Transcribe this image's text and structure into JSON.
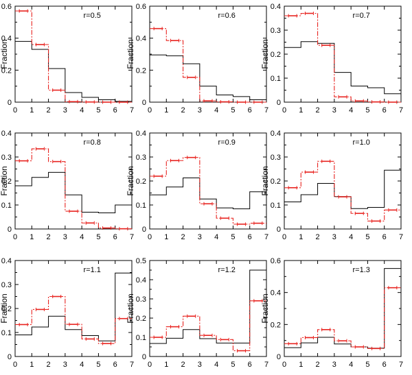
{
  "colors": {
    "black_series": "#000000",
    "red_series": "#e8231f",
    "frame": "#000000"
  },
  "chart_data": [
    {
      "type": "step-histogram",
      "title": "r=0.5",
      "ylabel": "Fraction",
      "xlim": [
        0,
        7
      ],
      "ylim": [
        0,
        0.6
      ],
      "xticks": [
        "0",
        "1",
        "2",
        "3",
        "4",
        "5",
        "6",
        "7"
      ],
      "yticks": [
        {
          "value": 0,
          "label": "0"
        },
        {
          "value": 0.2,
          "label": "0.2"
        },
        {
          "value": 0.4,
          "label": "0.4"
        },
        {
          "value": 0.6,
          "label": "0.6"
        }
      ],
      "series": [
        {
          "name": "black",
          "style": "solid",
          "values": [
            0.38,
            0.33,
            0.21,
            0.06,
            0.03,
            0.015,
            0.005
          ]
        },
        {
          "name": "red",
          "style": "dash-dot",
          "error_bars": true,
          "values": [
            0.57,
            0.36,
            0.075,
            0.003,
            0.001,
            0.0,
            0.0
          ]
        }
      ]
    },
    {
      "type": "step-histogram",
      "title": "r=0.6",
      "ylabel": "Fraction",
      "xlim": [
        0,
        7
      ],
      "ylim": [
        0,
        0.6
      ],
      "xticks": [
        "0",
        "1",
        "2",
        "3",
        "4",
        "5",
        "6",
        "7"
      ],
      "yticks": [
        {
          "value": 0,
          "label": "0"
        },
        {
          "value": 0.2,
          "label": "0.2"
        },
        {
          "value": 0.4,
          "label": "0.4"
        },
        {
          "value": 0.6,
          "label": "0.6"
        }
      ],
      "series": [
        {
          "name": "black",
          "style": "solid",
          "values": [
            0.295,
            0.29,
            0.24,
            0.1,
            0.045,
            0.035,
            0.015
          ]
        },
        {
          "name": "red",
          "style": "dash-dot",
          "error_bars": true,
          "values": [
            0.46,
            0.385,
            0.155,
            0.008,
            0.002,
            0.0,
            0.0
          ]
        }
      ]
    },
    {
      "type": "step-histogram",
      "title": "r=0.7",
      "ylabel": "Fraction",
      "xlim": [
        0,
        7
      ],
      "ylim": [
        0,
        0.4
      ],
      "xticks": [
        "0",
        "1",
        "2",
        "3",
        "4",
        "5",
        "6",
        "7"
      ],
      "yticks": [
        {
          "value": 0,
          "label": "0"
        },
        {
          "value": 0.1,
          "label": "0.1"
        },
        {
          "value": 0.2,
          "label": "0.2"
        },
        {
          "value": 0.3,
          "label": "0.3"
        },
        {
          "value": 0.4,
          "label": "0.4"
        }
      ],
      "series": [
        {
          "name": "black",
          "style": "solid",
          "values": [
            0.228,
            0.252,
            0.245,
            0.124,
            0.067,
            0.06,
            0.035
          ]
        },
        {
          "name": "red",
          "style": "dash-dot",
          "error_bars": true,
          "values": [
            0.36,
            0.37,
            0.237,
            0.022,
            0.005,
            0.001,
            0.0
          ]
        }
      ]
    },
    {
      "type": "step-histogram",
      "title": "r=0.8",
      "ylabel": "Fraction",
      "xlim": [
        0,
        7
      ],
      "ylim": [
        0,
        0.4
      ],
      "xticks": [
        "0",
        "1",
        "2",
        "3",
        "4",
        "5",
        "6",
        "7"
      ],
      "yticks": [
        {
          "value": 0,
          "label": "0"
        },
        {
          "value": 0.1,
          "label": "0.1"
        },
        {
          "value": 0.2,
          "label": "0.2"
        },
        {
          "value": 0.3,
          "label": "0.3"
        },
        {
          "value": 0.4,
          "label": "0.4"
        }
      ],
      "series": [
        {
          "name": "black",
          "style": "solid",
          "values": [
            0.18,
            0.215,
            0.236,
            0.142,
            0.07,
            0.067,
            0.1
          ]
        },
        {
          "name": "red",
          "style": "dash-dot",
          "error_bars": true,
          "values": [
            0.284,
            0.334,
            0.281,
            0.074,
            0.025,
            0.004,
            0.001
          ]
        }
      ]
    },
    {
      "type": "step-histogram",
      "title": "r=0.9",
      "ylabel": "Fraction",
      "xlim": [
        0,
        7
      ],
      "ylim": [
        0,
        0.4
      ],
      "xticks": [
        "0",
        "1",
        "2",
        "3",
        "4",
        "5",
        "6",
        "7"
      ],
      "yticks": [
        {
          "value": 0,
          "label": "0"
        },
        {
          "value": 0.1,
          "label": "0.1"
        },
        {
          "value": 0.2,
          "label": "0.2"
        },
        {
          "value": 0.3,
          "label": "0.3"
        },
        {
          "value": 0.4,
          "label": "0.4"
        }
      ],
      "series": [
        {
          "name": "black",
          "style": "solid",
          "values": [
            0.142,
            0.175,
            0.213,
            0.125,
            0.088,
            0.084,
            0.155
          ]
        },
        {
          "name": "red",
          "style": "dash-dot",
          "error_bars": true,
          "values": [
            0.22,
            0.285,
            0.298,
            0.105,
            0.045,
            0.02,
            0.024
          ]
        }
      ]
    },
    {
      "type": "step-histogram",
      "title": "r=1.0",
      "ylabel": "Fraction",
      "xlim": [
        0,
        7
      ],
      "ylim": [
        0,
        0.4
      ],
      "xticks": [
        "0",
        "1",
        "2",
        "3",
        "4",
        "5",
        "6",
        "7"
      ],
      "yticks": [
        {
          "value": 0,
          "label": "0"
        },
        {
          "value": 0.1,
          "label": "0.1"
        },
        {
          "value": 0.2,
          "label": "0.2"
        },
        {
          "value": 0.3,
          "label": "0.3"
        },
        {
          "value": 0.4,
          "label": "0.4"
        }
      ],
      "series": [
        {
          "name": "black",
          "style": "solid",
          "values": [
            0.113,
            0.143,
            0.19,
            0.135,
            0.085,
            0.09,
            0.245
          ]
        },
        {
          "name": "red",
          "style": "dash-dot",
          "error_bars": true,
          "values": [
            0.172,
            0.237,
            0.282,
            0.134,
            0.065,
            0.033,
            0.079
          ]
        }
      ]
    },
    {
      "type": "step-histogram",
      "title": "r=1.1",
      "ylabel": "Fraction",
      "xlim": [
        0,
        7
      ],
      "ylim": [
        0,
        0.4
      ],
      "xticks": [
        "0",
        "1",
        "2",
        "3",
        "4",
        "5",
        "6",
        "7"
      ],
      "yticks": [
        {
          "value": 0,
          "label": "0"
        },
        {
          "value": 0.1,
          "label": "0.1"
        },
        {
          "value": 0.2,
          "label": "0.2"
        },
        {
          "value": 0.3,
          "label": "0.3"
        },
        {
          "value": 0.4,
          "label": "0.4"
        }
      ],
      "series": [
        {
          "name": "black",
          "style": "solid",
          "values": [
            0.09,
            0.123,
            0.168,
            0.112,
            0.087,
            0.065,
            0.348
          ]
        },
        {
          "name": "red",
          "style": "dash-dot",
          "error_bars": true,
          "values": [
            0.133,
            0.196,
            0.25,
            0.134,
            0.073,
            0.054,
            0.158
          ]
        }
      ]
    },
    {
      "type": "step-histogram",
      "title": "r=1.2",
      "ylabel": "Fraction",
      "xlim": [
        0,
        7
      ],
      "ylim": [
        0,
        0.5
      ],
      "xticks": [
        "0",
        "1",
        "2",
        "3",
        "4",
        "5",
        "6",
        "7"
      ],
      "yticks": [
        {
          "value": 0,
          "label": "0"
        },
        {
          "value": 0.1,
          "label": "0.1"
        },
        {
          "value": 0.2,
          "label": "0.2"
        },
        {
          "value": 0.3,
          "label": "0.3"
        },
        {
          "value": 0.4,
          "label": "0.4"
        },
        {
          "value": 0.5,
          "label": "0.5"
        }
      ],
      "series": [
        {
          "name": "black",
          "style": "solid",
          "values": [
            0.068,
            0.095,
            0.14,
            0.093,
            0.07,
            0.07,
            0.45
          ]
        },
        {
          "name": "red",
          "style": "dash-dot",
          "error_bars": true,
          "values": [
            0.1,
            0.155,
            0.21,
            0.11,
            0.088,
            0.03,
            0.29
          ]
        }
      ]
    },
    {
      "type": "step-histogram",
      "title": "r=1.3",
      "ylabel": "Fraction",
      "xlim": [
        0,
        7
      ],
      "ylim": [
        0,
        0.6
      ],
      "xticks": [
        "0",
        "1",
        "2",
        "3",
        "4",
        "5",
        "6",
        "7"
      ],
      "yticks": [
        {
          "value": 0,
          "label": "0"
        },
        {
          "value": 0.2,
          "label": "0.2"
        },
        {
          "value": 0.4,
          "label": "0.4"
        },
        {
          "value": 0.6,
          "label": "0.6"
        }
      ],
      "series": [
        {
          "name": "black",
          "style": "solid",
          "values": [
            0.055,
            0.085,
            0.12,
            0.078,
            0.06,
            0.052,
            0.55
          ]
        },
        {
          "name": "red",
          "style": "dash-dot",
          "error_bars": true,
          "values": [
            0.08,
            0.118,
            0.168,
            0.098,
            0.06,
            0.05,
            0.43
          ]
        }
      ]
    }
  ]
}
